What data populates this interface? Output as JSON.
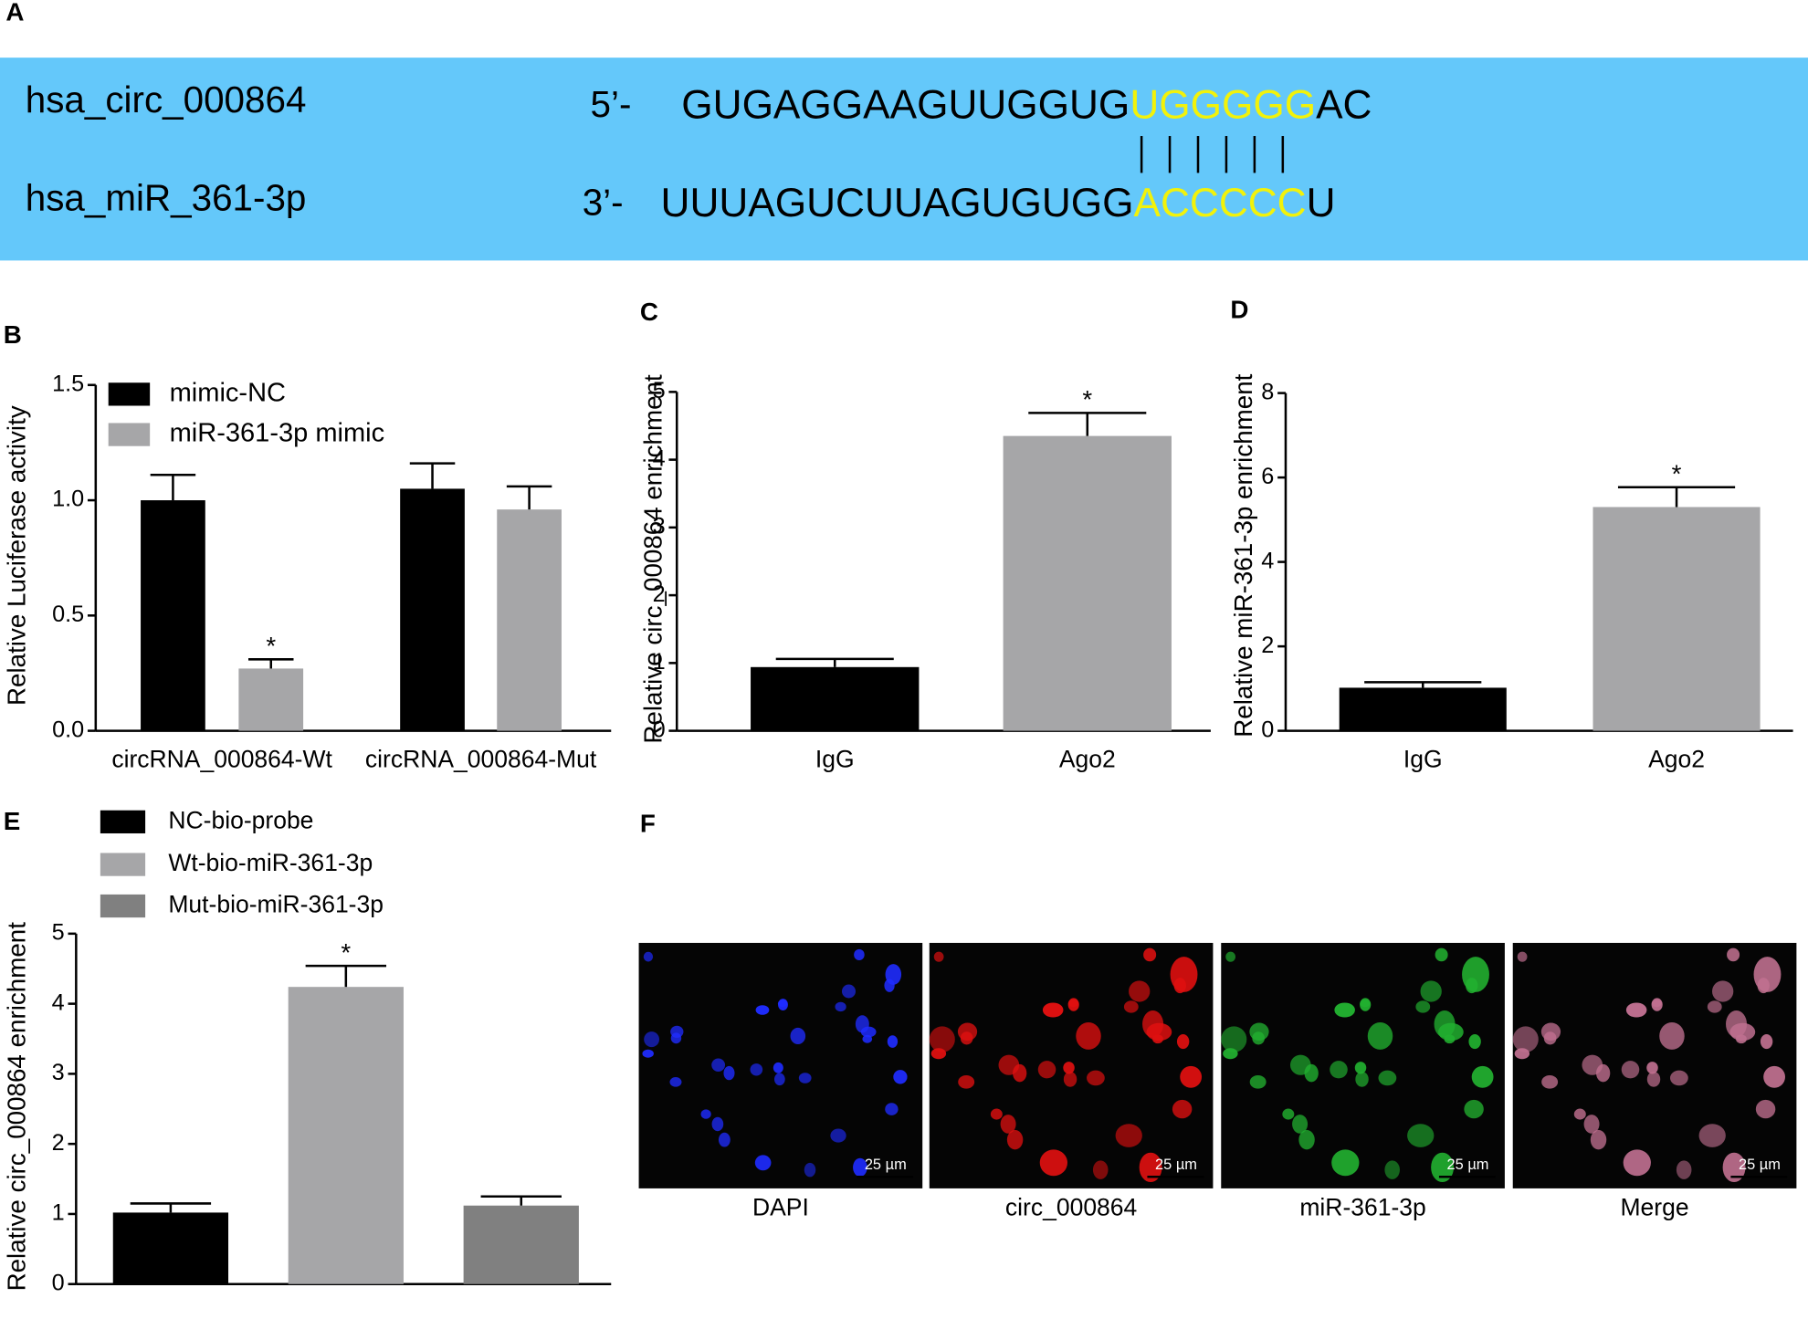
{
  "panel_labels": [
    "A",
    "B",
    "C",
    "D",
    "E",
    "F"
  ],
  "sequence": {
    "background": "#64c8fa",
    "highlight_color": "#f2f20a",
    "rows": [
      {
        "name": "hsa_circ_000864",
        "prime": "5’-",
        "parts": [
          "GUGAGGAAGUUGGUG",
          "UGGGGG",
          "AC"
        ]
      },
      {
        "name": "hsa_miR_361-3p",
        "prime": "3’-",
        "parts": [
          "UUUAGUCUUAGUGUGG",
          "ACCCCC",
          "U"
        ]
      }
    ]
  },
  "chart_data": [
    {
      "type": "bar",
      "ylabel": "Relative Luciferase activity",
      "categories": [
        "circRNA_000864-Wt",
        "circRNA_000864-Mut"
      ],
      "series": [
        {
          "name": "mimic-NC",
          "color": "#000000",
          "values": [
            1.0,
            1.05
          ],
          "errors": [
            0.11,
            0.11
          ]
        },
        {
          "name": "miR-361-3p mimic",
          "color": "#a6a6a8",
          "values": [
            0.27,
            0.96
          ],
          "errors": [
            0.04,
            0.1
          ]
        }
      ],
      "ylim": [
        0,
        1.5
      ],
      "yticks": [
        {
          "value": 0,
          "label": "0.0"
        },
        0.5,
        {
          "value": 1,
          "label": "1.0"
        },
        1.5
      ],
      "annotations": [
        {
          "text": "*",
          "series": 1,
          "index": 0
        }
      ]
    },
    {
      "type": "bar",
      "ylabel": "Relative circ_000864 enrichment",
      "categories": [
        "IgG",
        "Ago2"
      ],
      "values": [
        0.94,
        4.35
      ],
      "errors": [
        0.12,
        0.34
      ],
      "colors": [
        "#000000",
        "#a6a6a8"
      ],
      "ylim": [
        0,
        5
      ],
      "yticks": [
        0,
        1,
        2,
        3,
        4,
        5
      ],
      "annotations": [
        {
          "text": "*",
          "index": 1
        }
      ]
    },
    {
      "type": "bar",
      "ylabel": "Relative miR-361-3p enrichment",
      "categories": [
        "IgG",
        "Ago2"
      ],
      "values": [
        1.02,
        5.3
      ],
      "errors": [
        0.13,
        0.47
      ],
      "colors": [
        "#000000",
        "#a6a6a8"
      ],
      "ylim": [
        0,
        8
      ],
      "yticks": [
        0,
        2,
        4,
        6,
        8
      ],
      "annotations": [
        {
          "text": "*",
          "index": 1
        }
      ]
    },
    {
      "type": "bar",
      "ylabel": "Relative circ_000864 enrichment",
      "categories": [
        null
      ],
      "series": [
        {
          "name": "NC-bio-probe",
          "color": "#000000",
          "values": [
            1.02
          ],
          "errors": [
            0.13
          ]
        },
        {
          "name": "Wt-bio-miR-361-3p",
          "color": "#a6a6a8",
          "values": [
            4.24
          ],
          "errors": [
            0.3
          ]
        },
        {
          "name": "Mut-bio-miR-361-3p",
          "color": "#808080",
          "values": [
            1.12
          ],
          "errors": [
            0.13
          ]
        }
      ],
      "ylim": [
        0,
        5
      ],
      "yticks": [
        0,
        1,
        2,
        3,
        4,
        5
      ],
      "annotations": [
        {
          "text": "*",
          "series": 1,
          "index": 0
        }
      ]
    }
  ],
  "images": [
    {
      "label": "DAPI",
      "scale_bar": "25 µm",
      "color": "#1f2cff"
    },
    {
      "label": "circ_000864",
      "scale_bar": "25 µm",
      "color": "#e01010"
    },
    {
      "label": "miR-361-3p",
      "scale_bar": "25 µm",
      "color": "#22b030"
    },
    {
      "label": "Merge",
      "scale_bar": "25 µm",
      "color": "#c07090"
    }
  ]
}
